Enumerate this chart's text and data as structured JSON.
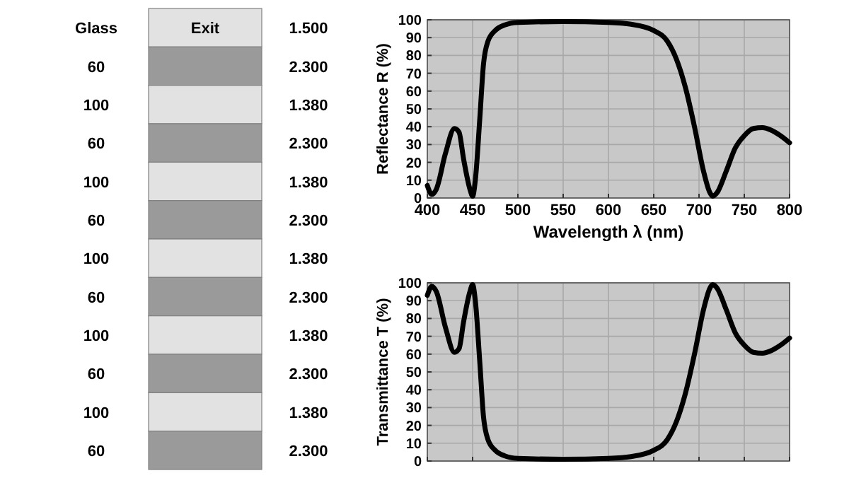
{
  "chart_data": [
    {
      "type": "other",
      "cell_labels": [
        [
          "Glass",
          "Exit",
          "1.500"
        ],
        [
          "60",
          null,
          "2.300"
        ],
        [
          "100",
          null,
          "1.380"
        ],
        [
          "60",
          null,
          "2.300"
        ],
        [
          "100",
          null,
          "1.380"
        ],
        [
          "60",
          null,
          "2.300"
        ],
        [
          "100",
          null,
          "1.380"
        ],
        [
          "60",
          null,
          "2.300"
        ],
        [
          "100",
          null,
          "1.380"
        ],
        [
          "60",
          null,
          "2.300"
        ],
        [
          "100",
          null,
          "1.380"
        ],
        [
          "60",
          null,
          "2.300"
        ]
      ],
      "colors": [
        "#e2e2e2",
        "#9a9a9a",
        "#e2e2e2",
        "#9a9a9a",
        "#e2e2e2",
        "#9a9a9a",
        "#e2e2e2",
        "#9a9a9a",
        "#e2e2e2",
        "#9a9a9a",
        "#e2e2e2",
        "#9a9a9a"
      ]
    },
    {
      "type": "line",
      "xlabel": "Wavelength λ (nm)",
      "ylabel": "Reflectance R (%)",
      "xlim": [
        400,
        800
      ],
      "ylim": [
        0,
        100
      ],
      "xticks": [
        400,
        450,
        500,
        550,
        600,
        650,
        700,
        750,
        800
      ],
      "yticks": [
        0,
        10,
        20,
        30,
        40,
        50,
        60,
        70,
        80,
        90,
        100
      ],
      "grid": true,
      "series": [
        {
          "color": "#000000",
          "x": [
            400,
            405,
            410,
            420,
            430,
            435,
            440,
            447,
            450,
            453,
            458,
            462,
            467,
            475,
            485,
            500,
            550,
            600,
            625,
            650,
            665,
            675,
            685,
            695,
            705,
            712,
            715,
            720,
            730,
            740,
            750,
            760,
            770,
            780,
            790,
            800
          ],
          "values": [
            7,
            2,
            5,
            25,
            39,
            37,
            22,
            5,
            1,
            10,
            45,
            75,
            88,
            94,
            97,
            98.5,
            99,
            98.5,
            97.5,
            94,
            88,
            78,
            62,
            40,
            15,
            3,
            1,
            3,
            15,
            28,
            35,
            39,
            39.5,
            38,
            35,
            31
          ]
        }
      ]
    },
    {
      "type": "line",
      "ylabel": "Transmittance T (%)",
      "xlim": [
        400,
        800
      ],
      "ylim": [
        0,
        100
      ],
      "xticks": [
        400,
        450,
        500,
        550,
        600,
        650,
        700,
        750,
        800
      ],
      "yticks": [
        0,
        10,
        20,
        30,
        40,
        50,
        60,
        70,
        80,
        90,
        100
      ],
      "grid": true,
      "tick_labels": "y",
      "series": [
        {
          "color": "#000000",
          "x": [
            400,
            405,
            410,
            420,
            430,
            435,
            440,
            447,
            450,
            453,
            458,
            462,
            467,
            475,
            485,
            500,
            550,
            600,
            625,
            650,
            665,
            675,
            685,
            695,
            705,
            712,
            715,
            720,
            730,
            740,
            750,
            760,
            770,
            780,
            790,
            800
          ],
          "values": [
            93,
            98,
            95,
            75,
            61,
            63,
            78,
            95,
            99,
            90,
            55,
            25,
            12,
            6,
            3,
            1.5,
            1,
            1.5,
            2.5,
            6,
            12,
            22,
            38,
            60,
            85,
            97,
            99,
            97,
            85,
            72,
            65,
            61,
            60.5,
            62,
            65,
            69
          ]
        }
      ]
    }
  ]
}
